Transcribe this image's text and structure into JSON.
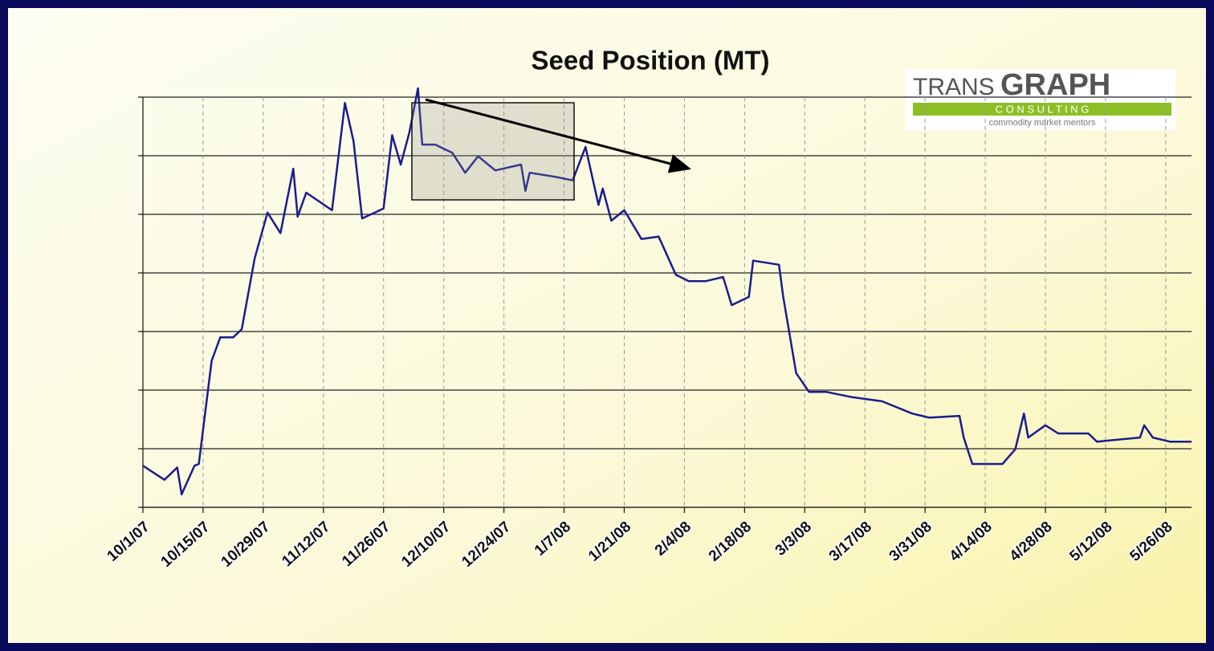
{
  "chart_data": {
    "type": "line",
    "title": "Seed Position (MT)",
    "logo": {
      "trans": "TRANS",
      "graph": "GRAPH",
      "consulting": "C O N S U L T I N G",
      "tagline": "commodity market mentors"
    },
    "color": "#1c1c8e",
    "x": [
      "10/1/07",
      "10/6/07",
      "10/9/07",
      "10/10/07",
      "10/13/07",
      "10/14/07",
      "10/17/07",
      "10/19/07",
      "10/22/07",
      "10/24/07",
      "10/27/07",
      "10/30/07",
      "11/2/07",
      "11/5/07",
      "11/6/07",
      "11/8/07",
      "11/14/07",
      "11/17/07",
      "11/19/07",
      "11/21/07",
      "11/26/07",
      "11/28/07",
      "11/30/07",
      "12/2/07",
      "12/4/07",
      "12/5/07",
      "12/8/07",
      "12/12/07",
      "12/15/07",
      "12/18/07",
      "12/22/07",
      "12/28/07",
      "12/29/07",
      "12/30/07",
      "1/5/08",
      "1/9/08",
      "1/12/08",
      "1/15/08",
      "1/16/08",
      "1/18/08",
      "1/21/08",
      "1/25/08",
      "1/29/08",
      "2/2/08",
      "2/5/08",
      "2/9/08",
      "2/13/08",
      "2/15/08",
      "2/19/08",
      "2/20/08",
      "2/26/08",
      "2/27/08",
      "3/1/08",
      "3/4/08",
      "3/8/08",
      "3/14/08",
      "3/21/08",
      "3/28/08",
      "4/1/08",
      "4/8/08",
      "4/9/08",
      "4/11/08",
      "4/18/08",
      "4/21/08",
      "4/23/08",
      "4/24/08",
      "4/28/08",
      "5/1/08",
      "5/8/08",
      "5/10/08",
      "5/20/08",
      "5/21/08",
      "5/23/08",
      "5/27/08",
      "6/1/08"
    ],
    "values": [
      0.71,
      0.47,
      0.68,
      0.22,
      0.71,
      0.74,
      2.5,
      2.9,
      2.9,
      3.04,
      4.25,
      5.03,
      4.68,
      5.78,
      4.96,
      5.37,
      5.07,
      6.9,
      6.25,
      4.93,
      5.1,
      6.35,
      5.85,
      6.4,
      7.15,
      6.19,
      6.19,
      6.05,
      5.71,
      5.99,
      5.75,
      5.85,
      5.4,
      5.71,
      5.64,
      5.58,
      6.15,
      5.16,
      5.44,
      4.89,
      5.07,
      4.58,
      4.62,
      3.97,
      3.86,
      3.86,
      3.93,
      3.45,
      3.59,
      4.21,
      4.14,
      3.59,
      2.29,
      1.97,
      1.97,
      1.88,
      1.81,
      1.6,
      1.53,
      1.56,
      1.19,
      0.74,
      0.74,
      0.99,
      1.6,
      1.19,
      1.4,
      1.26,
      1.26,
      1.12,
      1.19,
      1.4,
      1.19,
      1.12,
      1.12
    ],
    "xlim": [
      "10/1/07",
      "6/1/08"
    ],
    "xticks": [
      "10/1/07",
      "10/15/07",
      "10/29/07",
      "11/12/07",
      "11/26/07",
      "12/10/07",
      "12/24/07",
      "1/7/08",
      "1/21/08",
      "2/4/08",
      "2/18/08",
      "3/3/08",
      "3/17/08",
      "3/31/08",
      "4/14/08",
      "4/28/08",
      "5/12/08",
      "5/26/08"
    ],
    "ylim": [
      0,
      7
    ],
    "yticks": [
      0,
      1,
      2,
      3,
      4,
      5,
      6,
      7
    ],
    "grid": true
  }
}
